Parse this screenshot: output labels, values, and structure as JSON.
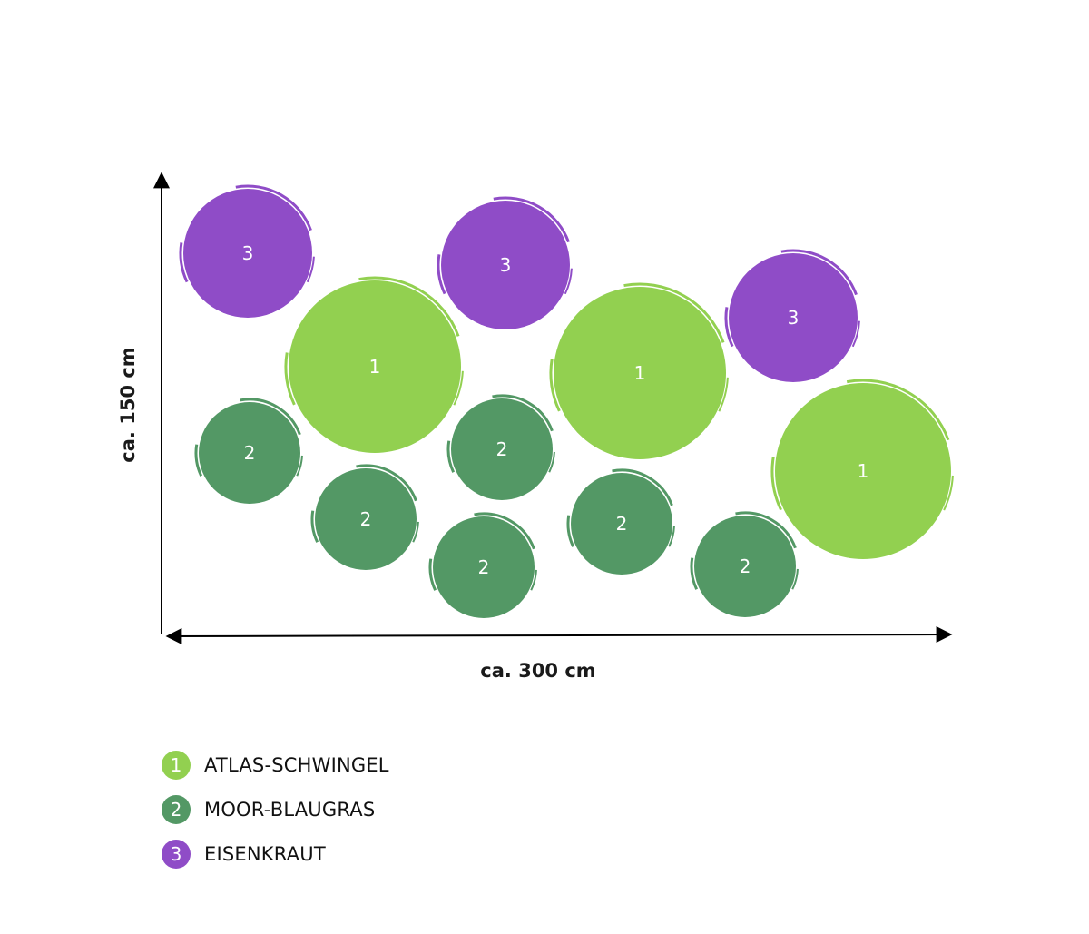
{
  "dimensions": {
    "height_label": "ca. 150 cm",
    "width_label": "ca. 300 cm"
  },
  "colors": {
    "atlas": "#92d050",
    "moor": "#539865",
    "eisen": "#8f4cc7"
  },
  "plants": [
    {
      "id": "3",
      "kind": "eisen"
    },
    {
      "id": "3",
      "kind": "eisen"
    },
    {
      "id": "3",
      "kind": "eisen"
    },
    {
      "id": "1",
      "kind": "atlas"
    },
    {
      "id": "1",
      "kind": "atlas"
    },
    {
      "id": "1",
      "kind": "atlas"
    },
    {
      "id": "2",
      "kind": "moor"
    },
    {
      "id": "2",
      "kind": "moor"
    },
    {
      "id": "2",
      "kind": "moor"
    },
    {
      "id": "2",
      "kind": "moor"
    },
    {
      "id": "2",
      "kind": "moor"
    },
    {
      "id": "2",
      "kind": "moor"
    }
  ],
  "legend": [
    {
      "num": "1",
      "label": "ATLAS-SCHWINGEL",
      "kind": "atlas"
    },
    {
      "num": "2",
      "label": "MOOR-BLAUGRAS",
      "kind": "moor"
    },
    {
      "num": "3",
      "label": "EISENKRAUT",
      "kind": "eisen"
    }
  ]
}
